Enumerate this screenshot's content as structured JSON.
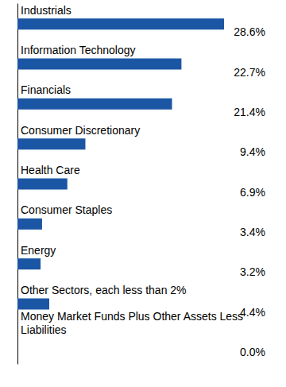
{
  "chart_data": {
    "type": "bar",
    "orientation": "horizontal",
    "categories": [
      "Industrials",
      "Information Technology",
      "Financials",
      "Consumer Discretionary",
      "Health Care",
      "Consumer Staples",
      "Energy",
      "Other Sectors, each less than 2%",
      "Money Market Funds Plus Other Assets Less Liabilities"
    ],
    "values": [
      28.6,
      22.7,
      21.4,
      9.4,
      6.9,
      3.4,
      3.2,
      4.4,
      0.0
    ],
    "value_labels": [
      "28.6%",
      "22.7%",
      "21.4%",
      "9.4%",
      "6.9%",
      "3.4%",
      "3.2%",
      "4.4%",
      "0.0%"
    ],
    "data_labels": true,
    "color": "#1a56a4",
    "grid": false,
    "tick_labels": "y"
  }
}
